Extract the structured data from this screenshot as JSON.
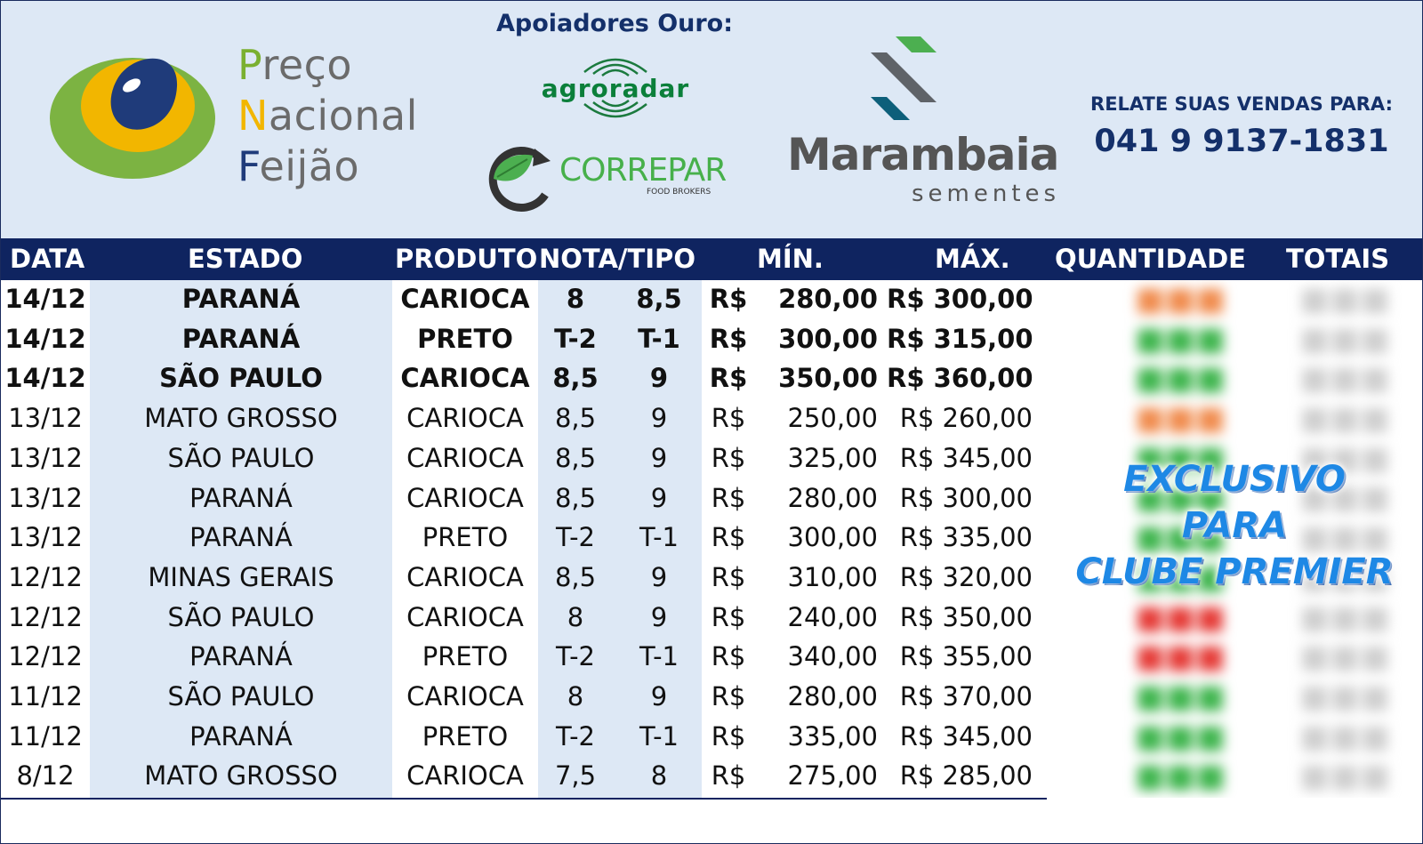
{
  "header": {
    "brand_lines": [
      {
        "initial": "P",
        "rest": "reço"
      },
      {
        "initial": "N",
        "rest": "acional"
      },
      {
        "initial": "F",
        "rest": "eijão"
      }
    ],
    "sponsors_title": "Apoiadores Ouro:",
    "sponsor_agroradar": "agroradar",
    "sponsor_correpar": "CORREPAR",
    "sponsor_correpar_sub": "FOOD BROKERS",
    "sponsor_marambaia_name": "Marambaia",
    "sponsor_marambaia_sub": "sementes",
    "contact_label": "RELATE SUAS VENDAS PARA:",
    "contact_phone": "041 9 9137-1831"
  },
  "table": {
    "headers": {
      "data": "DATA",
      "estado": "ESTADO",
      "produto": "PRODUTO",
      "nota_tipo": "NOTA/TIPO",
      "min": "MÍN.",
      "max": "MÁX.",
      "quantidade": "QUANTIDADE",
      "totais": "TOTAIS"
    },
    "rows": [
      {
        "data": "14/12",
        "estado": "PARANÁ",
        "produto": "CARIOCA",
        "nota": "8",
        "tipo": "8,5",
        "cur": "R$",
        "min": "280,00",
        "max": "R$ 300,00",
        "bold": true
      },
      {
        "data": "14/12",
        "estado": "PARANÁ",
        "produto": "PRETO",
        "nota": "T-2",
        "tipo": "T-1",
        "cur": "R$",
        "min": "300,00",
        "max": "R$ 315,00",
        "bold": true
      },
      {
        "data": "14/12",
        "estado": "SÃO PAULO",
        "produto": "CARIOCA",
        "nota": "8,5",
        "tipo": "9",
        "cur": "R$",
        "min": "350,00",
        "max": "R$ 360,00",
        "bold": true
      },
      {
        "data": "13/12",
        "estado": "MATO GROSSO",
        "produto": "CARIOCA",
        "nota": "8,5",
        "tipo": "9",
        "cur": "R$",
        "min": "250,00",
        "max": "R$ 260,00",
        "bold": false
      },
      {
        "data": "13/12",
        "estado": "SÃO PAULO",
        "produto": "CARIOCA",
        "nota": "8,5",
        "tipo": "9",
        "cur": "R$",
        "min": "325,00",
        "max": "R$ 345,00",
        "bold": false
      },
      {
        "data": "13/12",
        "estado": "PARANÁ",
        "produto": "CARIOCA",
        "nota": "8,5",
        "tipo": "9",
        "cur": "R$",
        "min": "280,00",
        "max": "R$ 300,00",
        "bold": false
      },
      {
        "data": "13/12",
        "estado": "PARANÁ",
        "produto": "PRETO",
        "nota": "T-2",
        "tipo": "T-1",
        "cur": "R$",
        "min": "300,00",
        "max": "R$ 335,00",
        "bold": false
      },
      {
        "data": "12/12",
        "estado": "MINAS GERAIS",
        "produto": "CARIOCA",
        "nota": "8,5",
        "tipo": "9",
        "cur": "R$",
        "min": "310,00",
        "max": "R$ 320,00",
        "bold": false
      },
      {
        "data": "12/12",
        "estado": "SÃO PAULO",
        "produto": "CARIOCA",
        "nota": "8",
        "tipo": "9",
        "cur": "R$",
        "min": "240,00",
        "max": "R$ 350,00",
        "bold": false
      },
      {
        "data": "12/12",
        "estado": "PARANÁ",
        "produto": "PRETO",
        "nota": "T-2",
        "tipo": "T-1",
        "cur": "R$",
        "min": "340,00",
        "max": "R$ 355,00",
        "bold": false
      },
      {
        "data": "11/12",
        "estado": "SÃO PAULO",
        "produto": "CARIOCA",
        "nota": "8",
        "tipo": "9",
        "cur": "R$",
        "min": "280,00",
        "max": "R$ 370,00",
        "bold": false
      },
      {
        "data": "11/12",
        "estado": "PARANÁ",
        "produto": "PRETO",
        "nota": "T-2",
        "tipo": "T-1",
        "cur": "R$",
        "min": "335,00",
        "max": "R$ 345,00",
        "bold": false
      },
      {
        "data": "8/12",
        "estado": "MATO GROSSO",
        "produto": "CARIOCA",
        "nota": "7,5",
        "tipo": "8",
        "cur": "R$",
        "min": "275,00",
        "max": "R$ 285,00",
        "bold": false
      }
    ],
    "blurred_quantity_colors": [
      "#f08a4b",
      "#3cb44b",
      "#3cb44b",
      "#f08a4b",
      "#3cb44b",
      "#3cb44b",
      "#3cb44b",
      "#3cb44b",
      "#e53935",
      "#e53935",
      "#3cb44b",
      "#3cb44b",
      "#3cb44b"
    ],
    "exclusive_lines": [
      "EXCLUSIVO",
      "PARA",
      "CLUBE PREMIER"
    ]
  },
  "colors": {
    "header_bg": "#dde8f5",
    "table_header_bg": "#0f2460",
    "title_blue": "#14306a",
    "shaded_column": "#dde8f5",
    "exclusive_blue": "#1e88e5"
  }
}
